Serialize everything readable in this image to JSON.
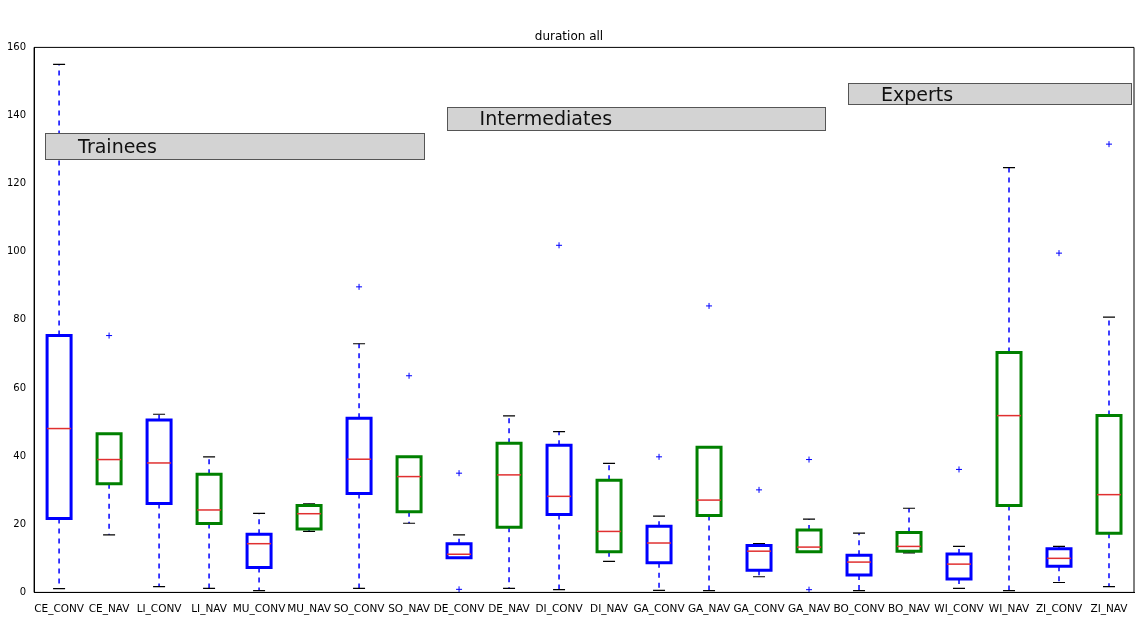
{
  "chart_data": {
    "type": "box",
    "title": "duration all",
    "categories": [
      "CE_CONV",
      "CE_NAV",
      "LI_CONV",
      "LI_NAV",
      "MU_CONV",
      "MU_NAV",
      "SO_CONV",
      "SO_NAV",
      "DE_CONV",
      "DE_NAV",
      "DI_CONV",
      "DI_NAV",
      "GA_CONV",
      "GA_NAV",
      "GA_CONV",
      "GA_NAV",
      "BO_CONV",
      "BO_NAV",
      "WI_CONV",
      "WI_NAV",
      "ZI_CONV",
      "ZI_NAV"
    ],
    "boxes": [
      {
        "low": 1.1,
        "q1": 21.7,
        "median": 48.1,
        "q3": 75.4,
        "high": 155
      },
      {
        "low": 16.9,
        "q1": 31.9,
        "median": 39,
        "q3": 46.6,
        "high": 46.6,
        "outliers": [
          75.4
        ]
      },
      {
        "low": 1.7,
        "q1": 26.1,
        "median": 38,
        "q3": 50.6,
        "high": 52.3
      },
      {
        "low": 1.2,
        "q1": 20.2,
        "median": 24.2,
        "q3": 34.7,
        "high": 39.8
      },
      {
        "low": 0.5,
        "q1": 7.3,
        "median": 14.3,
        "q3": 17.1,
        "high": 23.2
      },
      {
        "low": 17.9,
        "q1": 18.6,
        "median": 23.1,
        "q3": 25.5,
        "high": 26
      },
      {
        "low": 1.2,
        "q1": 29,
        "median": 39.1,
        "q3": 51.1,
        "high": 73,
        "outliers": [
          89.7
        ]
      },
      {
        "low": 20.3,
        "q1": 23.7,
        "median": 34,
        "q3": 39.8,
        "high": 39.8,
        "outliers": [
          63.6
        ]
      },
      {
        "low": 10.1,
        "q1": 10.2,
        "median": 11.2,
        "q3": 14.3,
        "high": 16.9,
        "outliers": [
          35,
          0.9
        ]
      },
      {
        "low": 1.2,
        "q1": 19.1,
        "median": 34.5,
        "q3": 43.8,
        "high": 51.8
      },
      {
        "low": 0.8,
        "q1": 22.9,
        "median": 28.2,
        "q3": 43.2,
        "high": 47.2,
        "outliers": [
          101.9
        ]
      },
      {
        "low": 9.1,
        "q1": 11.9,
        "median": 17.9,
        "q3": 32.9,
        "high": 37.9
      },
      {
        "low": 0.6,
        "q1": 8.7,
        "median": 14.5,
        "q3": 19.4,
        "high": 22.4,
        "outliers": [
          39.8
        ]
      },
      {
        "low": 0.5,
        "q1": 22.6,
        "median": 27.1,
        "q3": 42.6,
        "high": 42.6,
        "outliers": [
          84.1
        ]
      },
      {
        "low": 4.6,
        "q1": 6.5,
        "median": 12.1,
        "q3": 13.8,
        "high": 14.3,
        "outliers": [
          30.1
        ]
      },
      {
        "low": 11.9,
        "q1": 11.9,
        "median": 13.3,
        "q3": 18.3,
        "high": 21.5,
        "outliers": [
          39,
          0.8
        ]
      },
      {
        "low": 0.5,
        "q1": 5.1,
        "median": 8.9,
        "q3": 10.9,
        "high": 17.4
      },
      {
        "low": 11.6,
        "q1": 12.1,
        "median": 13.5,
        "q3": 17.6,
        "high": 24.7
      },
      {
        "low": 1.2,
        "q1": 3.9,
        "median": 8.3,
        "q3": 11.3,
        "high": 13.5,
        "outliers": [
          36.1
        ]
      },
      {
        "low": 0.5,
        "q1": 25.5,
        "median": 51.9,
        "q3": 70.4,
        "high": 124.7
      },
      {
        "low": 2.9,
        "q1": 7.7,
        "median": 10,
        "q3": 12.8,
        "high": 13.5,
        "outliers": [
          99.6
        ]
      },
      {
        "low": 1.7,
        "q1": 17.4,
        "median": 28.7,
        "q3": 51.9,
        "high": 80.8,
        "outliers": [
          131.6
        ]
      }
    ],
    "colors": [
      "#0000ff",
      "#008000",
      "#0000ff",
      "#008000",
      "#0000ff",
      "#008000",
      "#0000ff",
      "#008000",
      "#0000ff",
      "#008000",
      "#0000ff",
      "#008000",
      "#0000ff",
      "#008000",
      "#0000ff",
      "#008000",
      "#0000ff",
      "#008000",
      "#0000ff",
      "#008000",
      "#0000ff",
      "#008000"
    ],
    "ylim": [
      0,
      160
    ],
    "yticks": [
      0,
      20,
      40,
      60,
      80,
      100,
      120,
      140,
      160
    ],
    "annotations": [
      "Trainees",
      "Intermediates",
      "Experts"
    ]
  }
}
